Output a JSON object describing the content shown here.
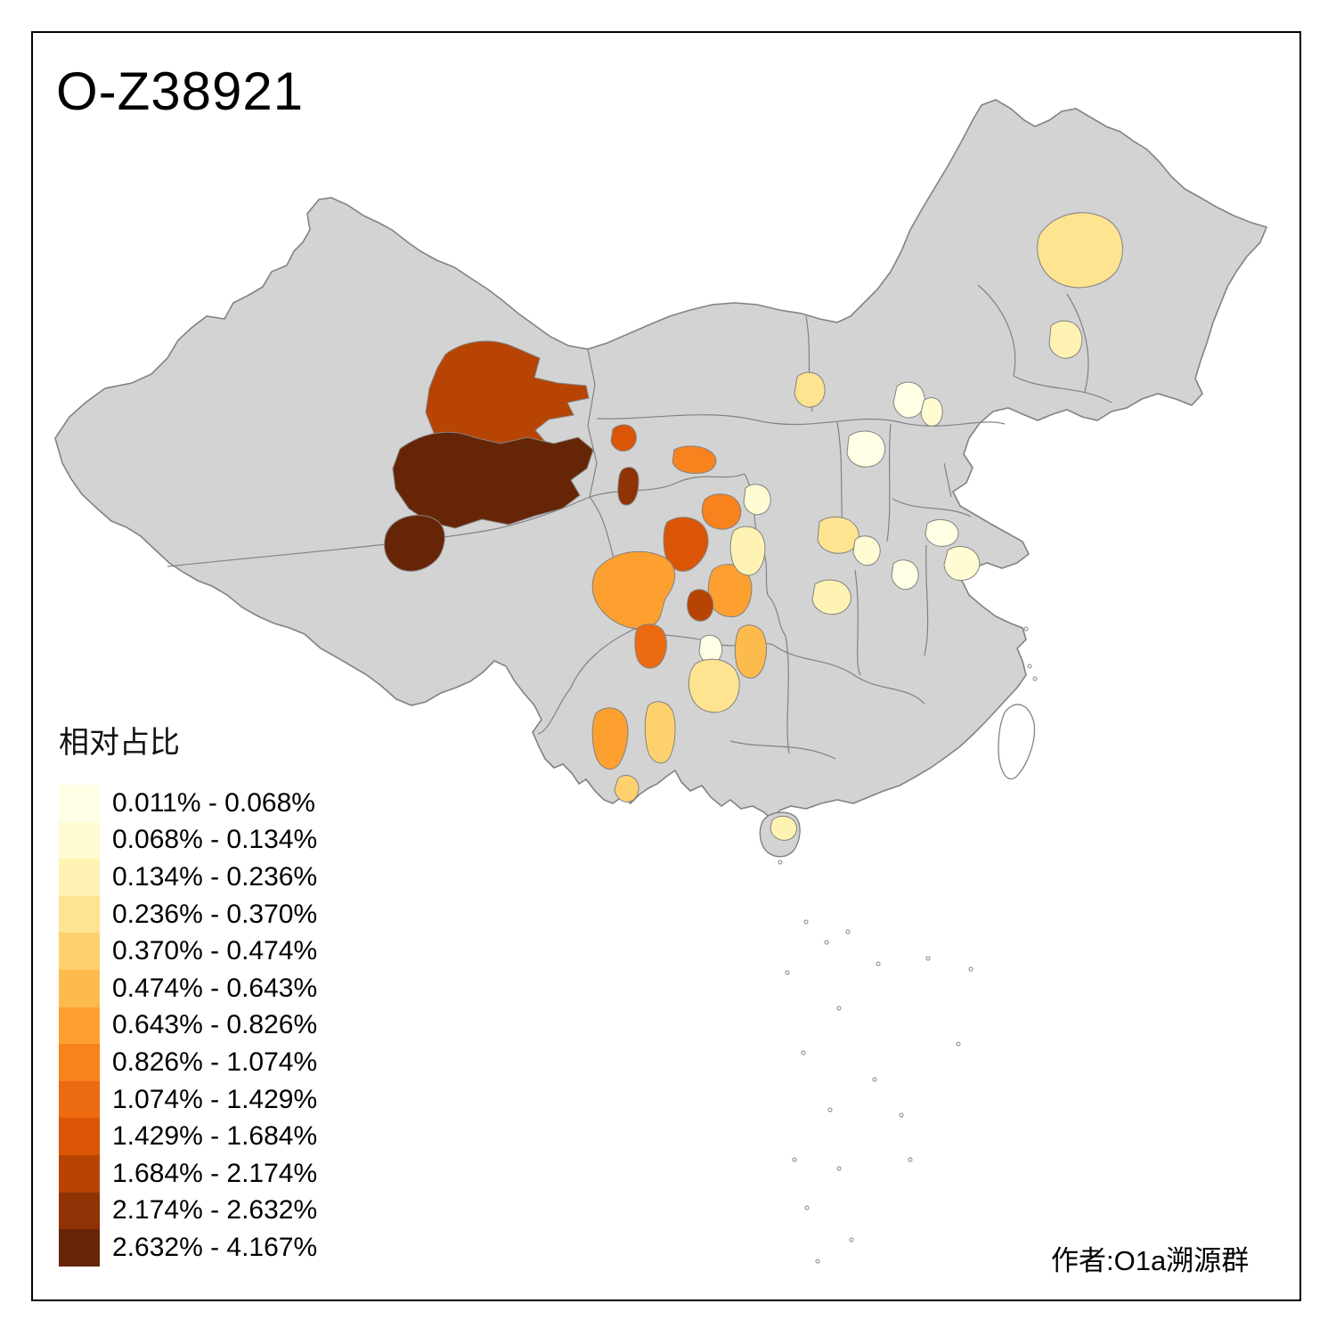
{
  "title": "O-Z38921",
  "author": "作者:O1a溯源群",
  "legend": {
    "title": "相对占比",
    "items": [
      {
        "range": "0.011% - 0.068%",
        "color": "#FFFFE5"
      },
      {
        "range": "0.068% - 0.134%",
        "color": "#FFFBD2"
      },
      {
        "range": "0.134% - 0.236%",
        "color": "#FFF3B4"
      },
      {
        "range": "0.236% - 0.370%",
        "color": "#FEE391"
      },
      {
        "range": "0.370% - 0.474%",
        "color": "#FED16E"
      },
      {
        "range": "0.474% - 0.643%",
        "color": "#FEBB4D"
      },
      {
        "range": "0.643% - 0.826%",
        "color": "#FEA02F"
      },
      {
        "range": "0.826% - 1.074%",
        "color": "#F8821D"
      },
      {
        "range": "1.074% - 1.429%",
        "color": "#EC6A10"
      },
      {
        "range": "1.429% - 1.684%",
        "color": "#DB5506"
      },
      {
        "range": "1.684% - 2.174%",
        "color": "#B84403"
      },
      {
        "range": "2.174% - 2.632%",
        "color": "#8F3204"
      },
      {
        "range": "2.632% - 4.167%",
        "color": "#662506"
      }
    ]
  },
  "map": {
    "land_color": "#d3d3d3",
    "border_color": "#828282",
    "sea_color": "#ffffff",
    "regions": [
      {
        "id": "xinjiang-north",
        "class": 11
      },
      {
        "id": "xinjiang-south",
        "class": 13
      },
      {
        "id": "xinjiang-southwest",
        "class": 13
      },
      {
        "id": "gansu-west",
        "class": 10
      },
      {
        "id": "qinghai-northwest",
        "class": 12
      },
      {
        "id": "gansu-corridor",
        "class": 8
      },
      {
        "id": "qinghai-east",
        "class": 10
      },
      {
        "id": "lanzhou-area",
        "class": 8
      },
      {
        "id": "gansu-south",
        "class": 7
      },
      {
        "id": "qinghai-south",
        "class": 11
      },
      {
        "id": "sichuan-west",
        "class": 7
      },
      {
        "id": "sichuan-central",
        "class": 9
      },
      {
        "id": "chongqing-west",
        "class": 1
      },
      {
        "id": "shaanxi-west",
        "class": 3
      },
      {
        "id": "ningxia",
        "class": 2
      },
      {
        "id": "inner-mongolia-central",
        "class": 4
      },
      {
        "id": "shanxi-central",
        "class": 1
      },
      {
        "id": "beijing",
        "class": 1
      },
      {
        "id": "hebei-central",
        "class": 2
      },
      {
        "id": "henan-west",
        "class": 4
      },
      {
        "id": "henan-east",
        "class": 2
      },
      {
        "id": "anhui-central",
        "class": 1
      },
      {
        "id": "shandong-west",
        "class": 1
      },
      {
        "id": "jiangsu-north",
        "class": 2
      },
      {
        "id": "hubei-north",
        "class": 3
      },
      {
        "id": "hubei-west",
        "class": 6
      },
      {
        "id": "guizhou-north",
        "class": 4
      },
      {
        "id": "yunnan-central",
        "class": 7
      },
      {
        "id": "yunnan-east",
        "class": 5
      },
      {
        "id": "yunnan-south",
        "class": 5
      },
      {
        "id": "heilongjiang-central",
        "class": 4
      },
      {
        "id": "jilin-central",
        "class": 3
      },
      {
        "id": "hainan-north",
        "class": 3
      }
    ]
  }
}
